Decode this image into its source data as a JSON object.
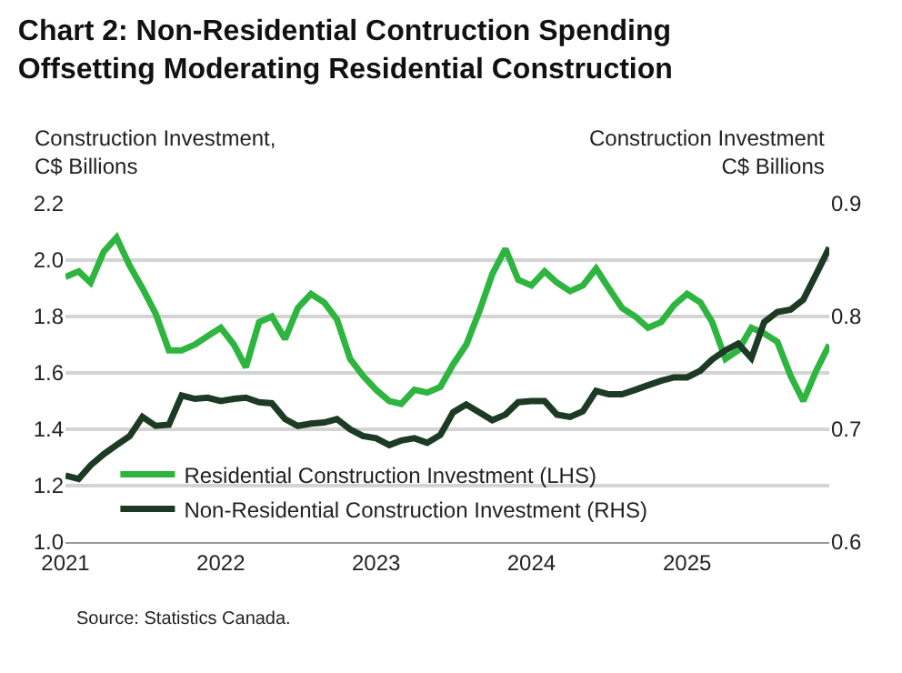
{
  "chart_data": {
    "type": "line",
    "title": "Chart 2: Non-Residential Contruction Spending Offsetting Moderating Residential Construction",
    "ylabel": "Construction Investment, C$ Billions",
    "y2label": "Construction Investment C$ Billions",
    "x": [
      "2021-01",
      "2021-02",
      "2021-03",
      "2021-04",
      "2021-05",
      "2021-06",
      "2021-07",
      "2021-08",
      "2021-09",
      "2021-10",
      "2021-11",
      "2021-12",
      "2022-01",
      "2022-02",
      "2022-03",
      "2022-04",
      "2022-05",
      "2022-06",
      "2022-07",
      "2022-08",
      "2022-09",
      "2022-10",
      "2022-11",
      "2022-12",
      "2023-01",
      "2023-02",
      "2023-03",
      "2023-04",
      "2023-05",
      "2023-06",
      "2023-07",
      "2023-08",
      "2023-09",
      "2023-10",
      "2023-11",
      "2023-12",
      "2024-01",
      "2024-02",
      "2024-03",
      "2024-04",
      "2024-05",
      "2024-06",
      "2024-07",
      "2024-08",
      "2024-09",
      "2024-10",
      "2024-11",
      "2024-12",
      "2025-01",
      "2025-02",
      "2025-03",
      "2025-04",
      "2025-05",
      "2025-06",
      "2025-07",
      "2025-08",
      "2025-09",
      "2025-10",
      "2025-11",
      "2025-12"
    ],
    "series": [
      {
        "name": "Residential Construction Investment (LHS)",
        "color": "#2db53f",
        "values": [
          1.94,
          1.96,
          1.92,
          2.03,
          2.08,
          1.98,
          1.9,
          1.81,
          1.68,
          1.68,
          1.7,
          1.73,
          1.76,
          1.7,
          1.62,
          1.78,
          1.8,
          1.72,
          1.83,
          1.88,
          1.85,
          1.79,
          1.65,
          1.59,
          1.54,
          1.5,
          1.49,
          1.54,
          1.53,
          1.55,
          1.63,
          1.7,
          1.82,
          1.95,
          2.04,
          1.93,
          1.91,
          1.96,
          1.92,
          1.89,
          1.91,
          1.97,
          1.9,
          1.83,
          1.8,
          1.76,
          1.78,
          1.84,
          1.88,
          1.85,
          1.78,
          1.65,
          1.68,
          1.76,
          1.74,
          1.71,
          1.59,
          1.5,
          1.61,
          1.7
        ]
      },
      {
        "name": "Non-Residential Construction Investment (RHS)",
        "color": "#1d3b24",
        "axis": "y2",
        "values": [
          0.659,
          0.656,
          0.668,
          0.678,
          0.686,
          0.694,
          0.711,
          0.703,
          0.704,
          0.73,
          0.727,
          0.728,
          0.725,
          0.727,
          0.728,
          0.724,
          0.723,
          0.709,
          0.703,
          0.705,
          0.706,
          0.709,
          0.7,
          0.694,
          0.692,
          0.686,
          0.69,
          0.692,
          0.688,
          0.695,
          0.715,
          0.722,
          0.715,
          0.708,
          0.713,
          0.724,
          0.725,
          0.725,
          0.713,
          0.711,
          0.716,
          0.734,
          0.731,
          0.731,
          0.735,
          0.739,
          0.743,
          0.746,
          0.746,
          0.752,
          0.762,
          0.77,
          0.776,
          0.763,
          0.795,
          0.804,
          0.806,
          0.815,
          0.838,
          0.861
        ]
      }
    ],
    "xlim": [
      "2021-01",
      "2025-12"
    ],
    "xticks": [
      "2021",
      "2022",
      "2023",
      "2024",
      "2025"
    ],
    "ylim": [
      1.0,
      2.2
    ],
    "yticks": [
      {
        "value": 1.0,
        "label": "1.0"
      },
      1.2,
      1.4,
      1.6,
      1.8,
      {
        "value": 2.0,
        "label": "2.0"
      },
      2.2
    ],
    "y2lim": [
      0.6,
      0.9
    ],
    "y2ticks": [
      0.6,
      0.7,
      0.8,
      0.9
    ],
    "grid": "y",
    "legend": "bottom left",
    "line_style": "solid",
    "marker": "none",
    "annotations": [
      "Source: Statistics Canada."
    ]
  }
}
